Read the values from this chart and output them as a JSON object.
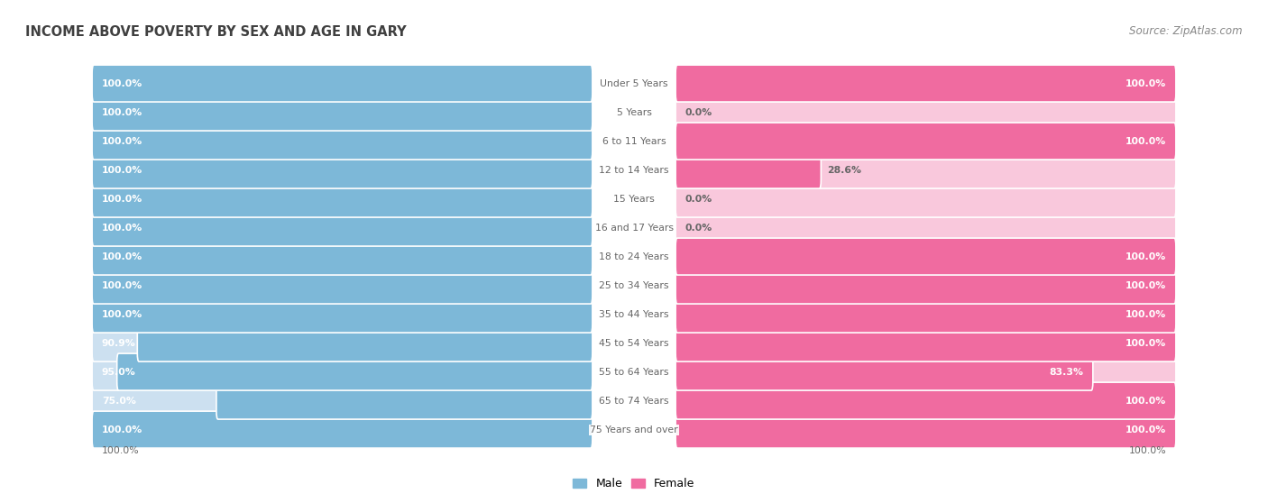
{
  "title": "INCOME ABOVE POVERTY BY SEX AND AGE IN GARY",
  "source": "Source: ZipAtlas.com",
  "categories": [
    "Under 5 Years",
    "5 Years",
    "6 to 11 Years",
    "12 to 14 Years",
    "15 Years",
    "16 and 17 Years",
    "18 to 24 Years",
    "25 to 34 Years",
    "35 to 44 Years",
    "45 to 54 Years",
    "55 to 64 Years",
    "65 to 74 Years",
    "75 Years and over"
  ],
  "male_values": [
    100.0,
    100.0,
    100.0,
    100.0,
    100.0,
    100.0,
    100.0,
    100.0,
    100.0,
    90.9,
    95.0,
    75.0,
    100.0
  ],
  "female_values": [
    100.0,
    0.0,
    100.0,
    28.6,
    0.0,
    0.0,
    100.0,
    100.0,
    100.0,
    100.0,
    83.3,
    100.0,
    100.0
  ],
  "male_color": "#7db8d8",
  "female_color": "#f06ba0",
  "male_color_light": "#cce0f0",
  "female_color_light": "#f9c8dc",
  "text_color_white": "#ffffff",
  "text_color_dark": "#666666",
  "title_color": "#404040",
  "source_color": "#888888"
}
